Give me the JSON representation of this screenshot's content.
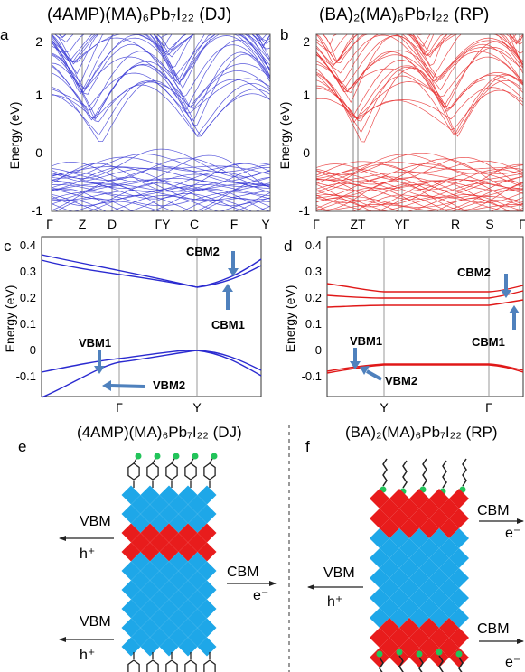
{
  "panel_a": {
    "letter": "a",
    "title": "(4AMP)(MA)₆Pb₇I₂₂ (DJ)",
    "ylabel": "Energy (eV)",
    "yticks": [
      "2",
      "1",
      "0",
      "-1"
    ],
    "kpoints": [
      "Γ",
      "Z",
      "D",
      "ΓY",
      "C",
      "F",
      "Y"
    ],
    "color": "#3b3bd6"
  },
  "panel_b": {
    "letter": "b",
    "title": "(BA)₂(MA)₆Pb₇I₂₂ (RP)",
    "ylabel": "Energy (eV)",
    "yticks": [
      "2",
      "1",
      "0",
      "-1"
    ],
    "kpoints": [
      "Γ",
      "ZT",
      "YΓ",
      "R",
      "S",
      "Γ"
    ],
    "color": "#e83030"
  },
  "panel_c": {
    "letter": "c",
    "ylabel": "Energy (eV)",
    "yticks": [
      "0.4",
      "0.3",
      "0.2",
      "0.1",
      "0",
      "-0.1"
    ],
    "kpoints": [
      "Γ",
      "Y"
    ],
    "labels": {
      "cbm2": "CBM2",
      "cbm1": "CBM1",
      "vbm1": "VBM1",
      "vbm2": "VBM2"
    },
    "color": "#2a2ad0"
  },
  "panel_d": {
    "letter": "d",
    "ylabel": "Energy (eV)",
    "yticks": [
      "0.4",
      "0.3",
      "0.2",
      "0.1",
      "0",
      "-0.1"
    ],
    "kpoints": [
      "Y",
      "Γ"
    ],
    "labels": {
      "cbm2": "CBM2",
      "cbm1": "CBM1",
      "vbm1": "VBM1",
      "vbm2": "VBM2"
    },
    "color": "#e01818"
  },
  "panel_e": {
    "letter": "e",
    "title": "(4AMP)(MA)₆Pb₇I₂₂ (DJ)",
    "vbm_top": "VBM",
    "hplus_top": "h⁺",
    "vbm_bottom": "VBM",
    "hplus_bottom": "h⁺",
    "cbm": "CBM",
    "eminus": "e⁻"
  },
  "panel_f": {
    "letter": "f",
    "title": "(BA)₂(MA)₆Pb₇I₂₂ (RP)",
    "vbm": "VBM",
    "hplus": "h⁺",
    "cbm_top": "CBM",
    "eminus_top": "e⁻",
    "cbm_bottom": "CBM",
    "eminus_bottom": "e⁻"
  },
  "colors": {
    "arrow": "#4f81bd",
    "blue_octahedra": "#1ea7e8",
    "red_octahedra": "#e81c1c",
    "ligand_dot": "#22c45a"
  }
}
